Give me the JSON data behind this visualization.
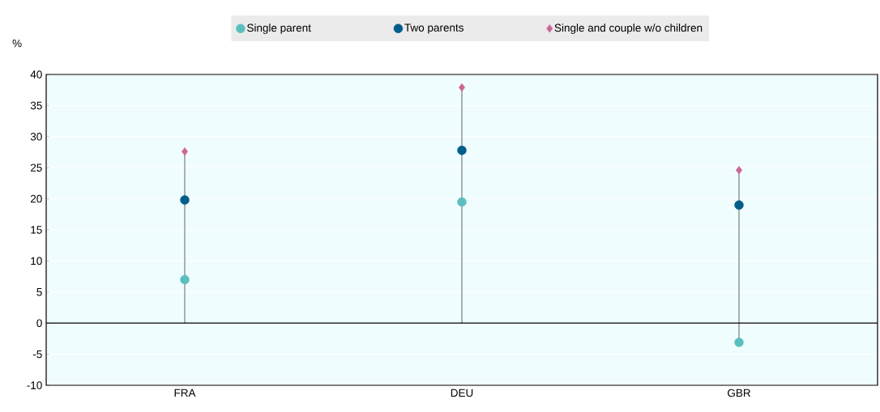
{
  "chart_data": {
    "type": "scatter",
    "ylabel": "%",
    "categories": [
      "FRA",
      "DEU",
      "GBR"
    ],
    "series": [
      {
        "name": "Single parent",
        "color": "#5bbfbf",
        "marker": "circle",
        "values": [
          7.0,
          19.5,
          -3.1
        ]
      },
      {
        "name": "Two parents",
        "color": "#005d8c",
        "marker": "circle",
        "values": [
          19.8,
          27.8,
          19.0
        ]
      },
      {
        "name": "Single and couple w/o children",
        "color": "#cc6699",
        "marker": "diamond",
        "values": [
          27.6,
          37.9,
          24.6
        ]
      }
    ],
    "ylim": [
      -10,
      40
    ],
    "yticks": [
      -10,
      -5,
      0,
      5,
      10,
      15,
      20,
      25,
      30,
      35,
      40
    ],
    "grid": "y",
    "legend": "top"
  }
}
